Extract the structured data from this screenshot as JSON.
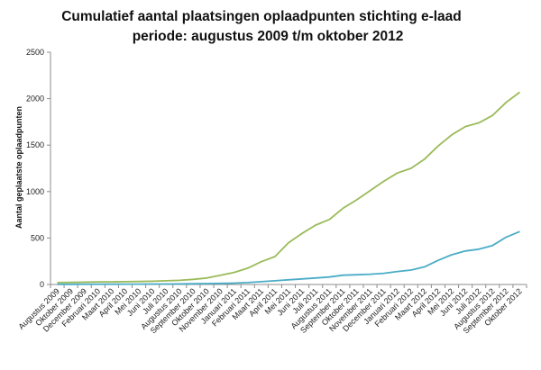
{
  "chart_data": {
    "type": "line",
    "title_line1": "Cumulatief aantal plaatsingen oplaadpunten stichting e-laad",
    "title_line2": "periode: augustus 2009 t/m oktober 2012",
    "xlabel": "",
    "ylabel": "Aantal geplaatste oplaadpunten",
    "ylim": [
      0,
      2500
    ],
    "yticks": [
      0,
      500,
      1000,
      1500,
      2000,
      2500
    ],
    "grid": false,
    "legend": "none",
    "x_tick_labels": [
      "Augustus 2009",
      "Oktober 2009",
      "December 2009",
      "Februari 2010",
      "Maart 2010",
      "April 2010",
      "Mei 2010",
      "Juni 2010",
      "Juli 2010",
      "Augustus 2010",
      "September 2010",
      "Oktober 2010",
      "November 2010",
      "Januari 2011",
      "Februari 2011",
      "Maart 2011",
      "April 2011",
      "Mei 2011",
      "Juni 2011",
      "Juli 2011",
      "Augustus 2011",
      "September 2011",
      "Oktober 2011",
      "November 2011",
      "December 2011",
      "Januari 2012",
      "Februari 2012",
      "Maart 2012",
      "April 2012",
      "Mei 2012",
      "Juni 2012",
      "Juli 2012",
      "Augustus 2012",
      "September 2012",
      "Oktober 2012"
    ],
    "series": [
      {
        "color": "#9bbb59",
        "values": [
          20,
          22,
          25,
          28,
          28,
          30,
          32,
          35,
          40,
          45,
          55,
          70,
          100,
          130,
          175,
          245,
          300,
          450,
          550,
          640,
          700,
          820,
          910,
          1010,
          1110,
          1200,
          1250,
          1350,
          1490,
          1610,
          1700,
          1740,
          1820,
          1960,
          2070
        ]
      },
      {
        "color": "#4bacc6",
        "values": [
          2,
          2,
          3,
          3,
          3,
          4,
          4,
          5,
          5,
          6,
          8,
          10,
          12,
          15,
          20,
          30,
          40,
          50,
          60,
          70,
          80,
          100,
          105,
          110,
          120,
          140,
          155,
          190,
          260,
          320,
          360,
          380,
          420,
          510,
          570
        ]
      }
    ]
  }
}
